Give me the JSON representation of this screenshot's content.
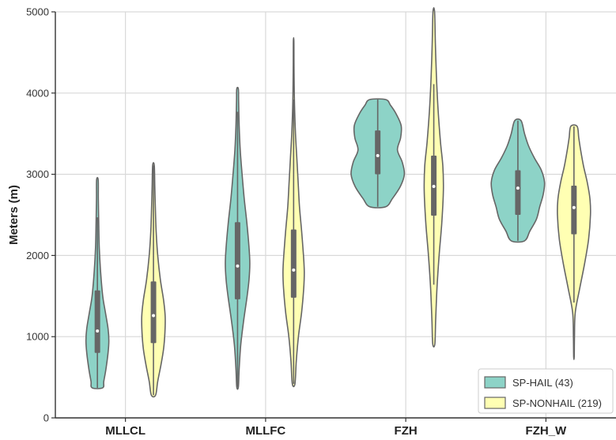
{
  "chart_data": {
    "type": "violin",
    "title": "",
    "xlabel": "",
    "ylabel": "Meters (m)",
    "ylim": [
      0,
      5000
    ],
    "yticks": [
      "0",
      "1000",
      "2000",
      "3000",
      "4000",
      "5000"
    ],
    "grid": true,
    "legend_position": "bottom-right",
    "categories": [
      "MLLCL",
      "MLLFC",
      "FZH",
      "FZH_W"
    ],
    "series": [
      {
        "name": "SP-HAIL (43)",
        "color": "#8dd3c7",
        "violins": [
          {
            "min": 370,
            "q1": 800,
            "median": 1070,
            "q3": 1570,
            "max": 2930,
            "whisker_low": 370,
            "whisker_high": 2470,
            "profile": [
              [
                370,
                0.2
              ],
              [
                450,
                0.24
              ],
              [
                600,
                0.32
              ],
              [
                800,
                0.4
              ],
              [
                950,
                0.43
              ],
              [
                1100,
                0.4
              ],
              [
                1300,
                0.3
              ],
              [
                1500,
                0.2
              ],
              [
                1800,
                0.12
              ],
              [
                2100,
                0.07
              ],
              [
                2400,
                0.05
              ],
              [
                2700,
                0.035
              ],
              [
                2930,
                0.03
              ]
            ]
          },
          {
            "min": 380,
            "q1": 1460,
            "median": 1870,
            "q3": 2410,
            "max": 4050,
            "whisker_low": 380,
            "whisker_high": 3770,
            "profile": [
              [
                380,
                0.03
              ],
              [
                600,
                0.06
              ],
              [
                900,
                0.12
              ],
              [
                1200,
                0.23
              ],
              [
                1500,
                0.36
              ],
              [
                1700,
                0.43
              ],
              [
                1900,
                0.46
              ],
              [
                2100,
                0.43
              ],
              [
                2400,
                0.35
              ],
              [
                2700,
                0.25
              ],
              [
                3000,
                0.17
              ],
              [
                3300,
                0.1
              ],
              [
                3600,
                0.06
              ],
              [
                3900,
                0.04
              ],
              [
                4050,
                0.03
              ]
            ]
          },
          {
            "min": 2600,
            "q1": 3000,
            "median": 3230,
            "q3": 3540,
            "max": 3920,
            "whisker_low": 2600,
            "whisker_high": 3920,
            "profile": [
              [
                2600,
                0.3
              ],
              [
                2700,
                0.55
              ],
              [
                2850,
                0.85
              ],
              [
                3000,
                1.0
              ],
              [
                3150,
                0.92
              ],
              [
                3300,
                0.74
              ],
              [
                3450,
                0.86
              ],
              [
                3600,
                0.88
              ],
              [
                3750,
                0.68
              ],
              [
                3850,
                0.48
              ],
              [
                3920,
                0.3
              ]
            ]
          },
          {
            "min": 2180,
            "q1": 2500,
            "median": 2830,
            "q3": 3050,
            "max": 3660,
            "whisker_low": 2180,
            "whisker_high": 3660,
            "profile": [
              [
                2180,
                0.25
              ],
              [
                2300,
                0.45
              ],
              [
                2450,
                0.7
              ],
              [
                2600,
                0.82
              ],
              [
                2750,
                0.95
              ],
              [
                2900,
                1.0
              ],
              [
                3050,
                0.88
              ],
              [
                3200,
                0.62
              ],
              [
                3350,
                0.4
              ],
              [
                3500,
                0.25
              ],
              [
                3660,
                0.12
              ]
            ]
          }
        ]
      },
      {
        "name": "SP-NONHAIL (219)",
        "color": "#ffffb3",
        "violins": [
          {
            "min": 280,
            "q1": 920,
            "median": 1260,
            "q3": 1680,
            "max": 3110,
            "whisker_low": 280,
            "whisker_high": 3110,
            "profile": [
              [
                280,
                0.08
              ],
              [
                450,
                0.16
              ],
              [
                650,
                0.28
              ],
              [
                850,
                0.38
              ],
              [
                1050,
                0.43
              ],
              [
                1250,
                0.44
              ],
              [
                1450,
                0.38
              ],
              [
                1700,
                0.26
              ],
              [
                2000,
                0.16
              ],
              [
                2300,
                0.1
              ],
              [
                2600,
                0.07
              ],
              [
                2850,
                0.05
              ],
              [
                3110,
                0.03
              ]
            ]
          },
          {
            "min": 420,
            "q1": 1480,
            "median": 1820,
            "q3": 2320,
            "max": 4640,
            "whisker_low": 420,
            "whisker_high": 3920,
            "profile": [
              [
                420,
                0.05
              ],
              [
                700,
                0.1
              ],
              [
                1000,
                0.18
              ],
              [
                1300,
                0.3
              ],
              [
                1600,
                0.38
              ],
              [
                1800,
                0.4
              ],
              [
                2000,
                0.37
              ],
              [
                2300,
                0.3
              ],
              [
                2600,
                0.22
              ],
              [
                2900,
                0.17
              ],
              [
                3200,
                0.12
              ],
              [
                3500,
                0.07
              ],
              [
                3900,
                0.03
              ],
              [
                4300,
                0.015
              ],
              [
                4640,
                0.01
              ]
            ]
          },
          {
            "min": 910,
            "q1": 2490,
            "median": 2850,
            "q3": 3230,
            "max": 5000,
            "whisker_low": 1640,
            "whisker_high": 4110,
            "profile": [
              [
                910,
                0.04
              ],
              [
                1200,
                0.07
              ],
              [
                1600,
                0.12
              ],
              [
                2000,
                0.2
              ],
              [
                2400,
                0.3
              ],
              [
                2800,
                0.36
              ],
              [
                3100,
                0.34
              ],
              [
                3400,
                0.25
              ],
              [
                3800,
                0.16
              ],
              [
                4200,
                0.1
              ],
              [
                4600,
                0.06
              ],
              [
                5000,
                0.03
              ]
            ]
          },
          {
            "min": 750,
            "q1": 2260,
            "median": 2590,
            "q3": 2860,
            "max": 3590,
            "whisker_low": 1420,
            "whisker_high": 3590,
            "profile": [
              [
                750,
                0.01
              ],
              [
                1000,
                0.02
              ],
              [
                1300,
                0.05
              ],
              [
                1600,
                0.22
              ],
              [
                1900,
                0.4
              ],
              [
                2200,
                0.55
              ],
              [
                2500,
                0.62
              ],
              [
                2700,
                0.6
              ],
              [
                2900,
                0.5
              ],
              [
                3100,
                0.36
              ],
              [
                3300,
                0.25
              ],
              [
                3450,
                0.18
              ],
              [
                3590,
                0.12
              ]
            ]
          }
        ]
      }
    ]
  }
}
